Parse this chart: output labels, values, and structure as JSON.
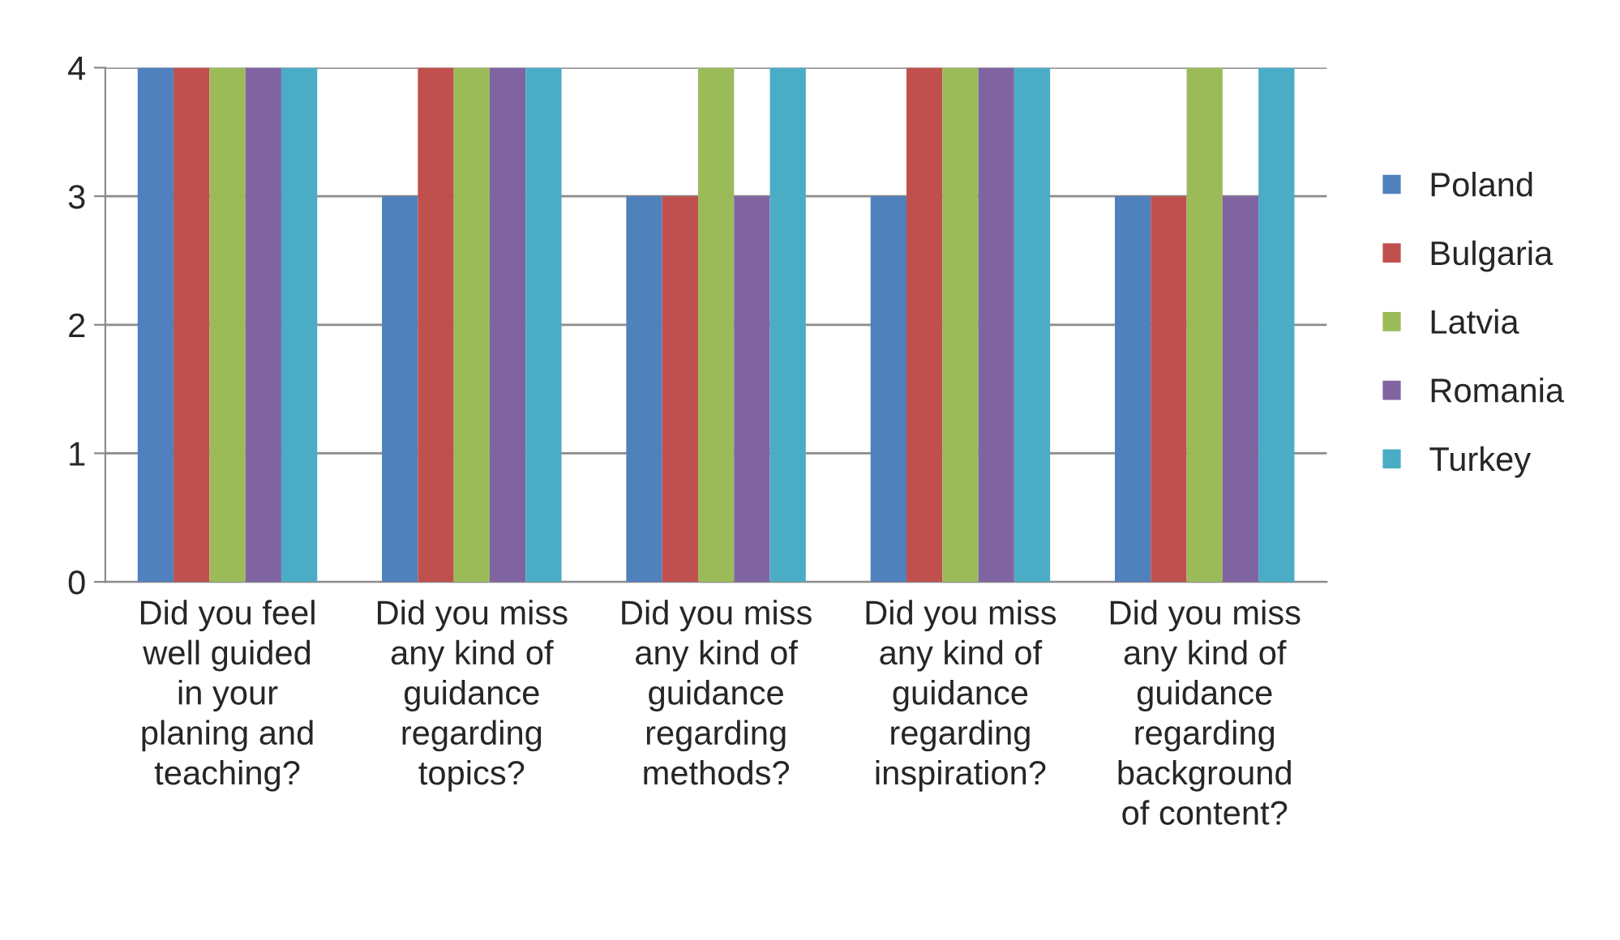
{
  "chart_data": {
    "type": "bar",
    "categories": [
      "Did you feel\nwell guided\nin your\nplaning and\nteaching?",
      "Did you miss\nany kind of\nguidance\nregarding\ntopics?",
      "Did you miss\nany kind of\nguidance\nregarding\nmethods?",
      "Did you miss\nany kind of\nguidance\nregarding\ninspiration?",
      "Did you miss\nany kind of\nguidance\nregarding\nbackground\nof content?"
    ],
    "series": [
      {
        "name": "Poland",
        "color": "#4f81bd",
        "values": [
          4,
          3,
          3,
          3,
          3
        ]
      },
      {
        "name": "Bulgaria",
        "color": "#c0504d",
        "values": [
          4,
          4,
          3,
          4,
          3
        ]
      },
      {
        "name": "Latvia",
        "color": "#9bbb59",
        "values": [
          4,
          4,
          4,
          4,
          4
        ]
      },
      {
        "name": "Romania",
        "color": "#8064a2",
        "values": [
          4,
          4,
          3,
          4,
          3
        ]
      },
      {
        "name": "Turkey",
        "color": "#4bacc6",
        "values": [
          4,
          4,
          4,
          4,
          4
        ]
      }
    ],
    "ylim": [
      0,
      4
    ],
    "yticks": [
      0,
      1,
      2,
      3,
      4
    ],
    "grid": "y",
    "legend": "right"
  }
}
